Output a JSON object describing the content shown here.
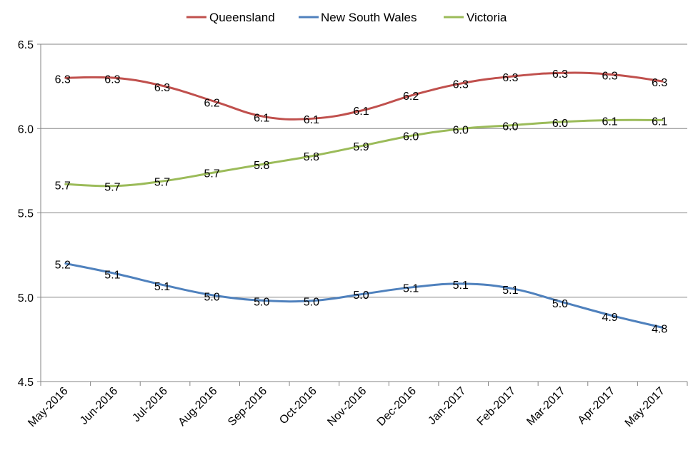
{
  "chart_data": {
    "type": "line",
    "title": "",
    "xlabel": "",
    "ylabel": "",
    "ylim": [
      4.5,
      6.5
    ],
    "yticks": [
      "4.5",
      "5.0",
      "5.5",
      "6.0",
      "6.5"
    ],
    "grid": "horizontal",
    "legend_position": "top",
    "categories": [
      "May-2016",
      "Jun-2016",
      "Jul-2016",
      "Aug-2016",
      "Sep-2016",
      "Oct-2016",
      "Nov-2016",
      "Dec-2016",
      "Jan-2017",
      "Feb-2017",
      "Mar-2017",
      "Apr-2017",
      "May-2017"
    ],
    "series": [
      {
        "name": "Queensland",
        "color": "#c0504d",
        "values": [
          6.3,
          6.3,
          6.25,
          6.16,
          6.07,
          6.06,
          6.11,
          6.2,
          6.27,
          6.31,
          6.33,
          6.32,
          6.28
        ],
        "labels": [
          "6.3",
          "6.3",
          "6.3",
          "6.2",
          "6.1",
          "6.1",
          "6.1",
          "6.2",
          "6.3",
          "6.3",
          "6.3",
          "6.3",
          "6.3"
        ]
      },
      {
        "name": "New South Wales",
        "color": "#4f81bd",
        "values": [
          5.2,
          5.14,
          5.07,
          5.01,
          4.98,
          4.98,
          5.02,
          5.06,
          5.08,
          5.05,
          4.97,
          4.89,
          4.82
        ],
        "labels": [
          "5.2",
          "5.1",
          "5.1",
          "5.0",
          "5.0",
          "5.0",
          "5.0",
          "5.1",
          "5.1",
          "5.1",
          "5.0",
          "4.9",
          "4.8"
        ]
      },
      {
        "name": "Victoria",
        "color": "#9bbb59",
        "values": [
          5.67,
          5.66,
          5.69,
          5.74,
          5.79,
          5.84,
          5.9,
          5.96,
          6.0,
          6.02,
          6.04,
          6.05,
          6.05
        ],
        "labels": [
          "5.7",
          "5.7",
          "5.7",
          "5.7",
          "5.8",
          "5.8",
          "5.9",
          "6.0",
          "6.0",
          "6.0",
          "6.0",
          "6.1",
          "6.1"
        ]
      }
    ]
  }
}
